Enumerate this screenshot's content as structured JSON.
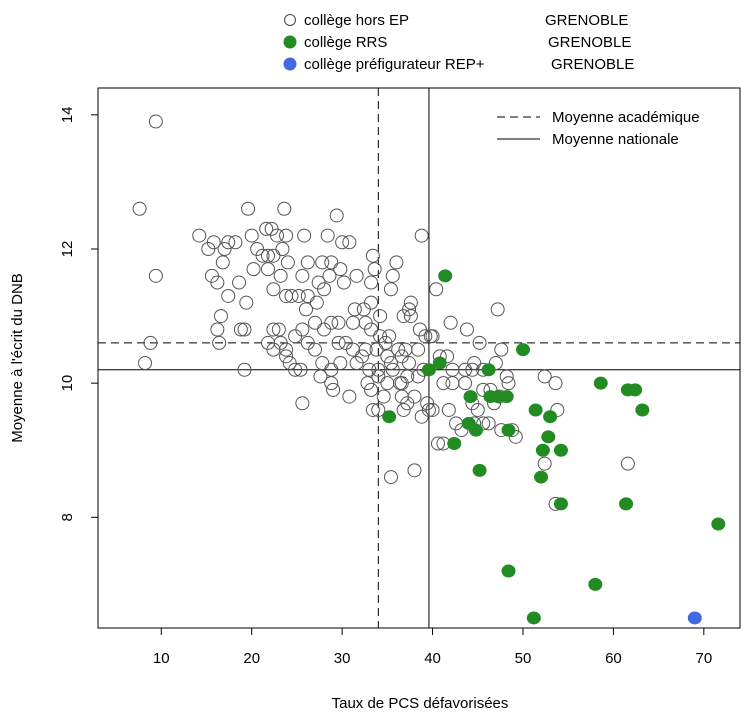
{
  "chart_data": {
    "type": "scatter",
    "xlabel": "Taux de PCS défavorisées",
    "ylabel": "Moyenne à l'écrit du DNB",
    "xlim": [
      3,
      74
    ],
    "ylim": [
      6.35,
      14.4
    ],
    "x_ticks": [
      10,
      20,
      30,
      40,
      50,
      60,
      70
    ],
    "y_ticks": [
      8,
      10,
      12,
      14
    ],
    "grid": false,
    "legend_position": "top",
    "reference_lines": [
      {
        "name": "Moyenne académique",
        "style": "dashed",
        "x": 34,
        "y": 10.6
      },
      {
        "name": "Moyenne nationale",
        "style": "solid",
        "x": 39.6,
        "y": 10.2
      }
    ],
    "series": [
      {
        "name": "collège hors EP",
        "city": "GRENOBLE",
        "marker": "open-circle",
        "color": "#555555",
        "points": [
          [
            9.4,
            13.9
          ],
          [
            7.6,
            12.6
          ],
          [
            9.4,
            11.6
          ],
          [
            8.8,
            10.6
          ],
          [
            8.2,
            10.3
          ],
          [
            19.6,
            12.6
          ],
          [
            23.6,
            12.6
          ],
          [
            29.4,
            12.5
          ],
          [
            38.8,
            12.2
          ],
          [
            14.2,
            12.2
          ],
          [
            15.8,
            12.1
          ],
          [
            17.4,
            12.1
          ],
          [
            18.2,
            12.1
          ],
          [
            15.2,
            12.0
          ],
          [
            17.0,
            12.0
          ],
          [
            20.0,
            12.2
          ],
          [
            21.6,
            12.3
          ],
          [
            22.2,
            12.3
          ],
          [
            22.8,
            12.2
          ],
          [
            23.8,
            12.2
          ],
          [
            25.8,
            12.2
          ],
          [
            28.4,
            12.2
          ],
          [
            30.8,
            12.1
          ],
          [
            20.6,
            12.0
          ],
          [
            21.2,
            11.9
          ],
          [
            21.8,
            11.9
          ],
          [
            22.4,
            11.9
          ],
          [
            23.4,
            12.0
          ],
          [
            24.0,
            11.8
          ],
          [
            26.2,
            11.8
          ],
          [
            27.8,
            11.8
          ],
          [
            28.8,
            11.8
          ],
          [
            29.8,
            11.7
          ],
          [
            33.4,
            11.9
          ],
          [
            21.8,
            11.7
          ],
          [
            23.2,
            11.6
          ],
          [
            25.6,
            11.6
          ],
          [
            27.4,
            11.5
          ],
          [
            28.6,
            11.6
          ],
          [
            30.2,
            11.5
          ],
          [
            31.6,
            11.6
          ],
          [
            33.6,
            11.7
          ],
          [
            15.6,
            11.6
          ],
          [
            16.2,
            11.5
          ],
          [
            16.8,
            11.8
          ],
          [
            18.6,
            11.5
          ],
          [
            20.2,
            11.7
          ],
          [
            22.4,
            11.4
          ],
          [
            26.2,
            11.3
          ],
          [
            28.0,
            11.4
          ],
          [
            33.2,
            11.5
          ],
          [
            35.4,
            11.4
          ],
          [
            33.2,
            11.2
          ],
          [
            35.6,
            11.6
          ],
          [
            36.0,
            11.8
          ],
          [
            37.4,
            11.1
          ],
          [
            37.6,
            11.2
          ],
          [
            36.8,
            11.0
          ],
          [
            37.6,
            11.0
          ],
          [
            34.2,
            11.0
          ],
          [
            31.4,
            11.1
          ],
          [
            32.4,
            11.1
          ],
          [
            23.8,
            11.3
          ],
          [
            24.4,
            11.3
          ],
          [
            25.2,
            11.3
          ],
          [
            26.0,
            11.1
          ],
          [
            27.2,
            11.2
          ],
          [
            17.4,
            11.3
          ],
          [
            19.4,
            11.2
          ],
          [
            16.6,
            11.0
          ],
          [
            16.2,
            10.8
          ],
          [
            18.8,
            10.8
          ],
          [
            19.2,
            10.8
          ],
          [
            22.4,
            10.8
          ],
          [
            23.0,
            10.8
          ],
          [
            24.8,
            10.7
          ],
          [
            25.6,
            10.8
          ],
          [
            27.0,
            10.9
          ],
          [
            28.0,
            10.8
          ],
          [
            28.8,
            10.9
          ],
          [
            29.6,
            10.9
          ],
          [
            31.2,
            10.9
          ],
          [
            32.6,
            10.9
          ],
          [
            33.2,
            10.8
          ],
          [
            34.2,
            10.7
          ],
          [
            34.8,
            10.6
          ],
          [
            35.2,
            10.7
          ],
          [
            36.2,
            10.5
          ],
          [
            37.0,
            10.5
          ],
          [
            38.4,
            10.5
          ],
          [
            38.6,
            10.8
          ],
          [
            39.2,
            10.7
          ],
          [
            39.8,
            10.7
          ],
          [
            16.4,
            10.6
          ],
          [
            21.8,
            10.6
          ],
          [
            22.4,
            10.5
          ],
          [
            23.2,
            10.6
          ],
          [
            23.8,
            10.5
          ],
          [
            26.2,
            10.6
          ],
          [
            27.0,
            10.5
          ],
          [
            29.6,
            10.6
          ],
          [
            30.4,
            10.6
          ],
          [
            31.2,
            10.5
          ],
          [
            32.6,
            10.5
          ],
          [
            33.8,
            10.5
          ],
          [
            35.0,
            10.4
          ],
          [
            35.4,
            10.3
          ],
          [
            36.6,
            10.4
          ],
          [
            37.4,
            10.3
          ],
          [
            23.8,
            10.4
          ],
          [
            24.2,
            10.3
          ],
          [
            24.8,
            10.2
          ],
          [
            27.8,
            10.3
          ],
          [
            28.8,
            10.2
          ],
          [
            29.8,
            10.3
          ],
          [
            31.6,
            10.3
          ],
          [
            32.2,
            10.4
          ],
          [
            33.0,
            10.2
          ],
          [
            34.0,
            10.2
          ],
          [
            35.6,
            10.2
          ],
          [
            36.6,
            10.0
          ],
          [
            37.2,
            10.1
          ],
          [
            38.4,
            10.1
          ],
          [
            39.0,
            10.2
          ],
          [
            19.2,
            10.2
          ],
          [
            25.4,
            10.2
          ],
          [
            27.6,
            10.1
          ],
          [
            28.8,
            10.0
          ],
          [
            32.8,
            10.0
          ],
          [
            34.0,
            10.1
          ],
          [
            35.0,
            10.0
          ],
          [
            29.0,
            9.9
          ],
          [
            33.2,
            9.9
          ],
          [
            34.6,
            9.8
          ],
          [
            36.6,
            9.8
          ],
          [
            36.4,
            10.0
          ],
          [
            37.2,
            9.7
          ],
          [
            38.0,
            9.8
          ],
          [
            39.4,
            9.7
          ],
          [
            25.6,
            9.7
          ],
          [
            30.8,
            9.8
          ],
          [
            33.4,
            9.6
          ],
          [
            34.0,
            9.6
          ],
          [
            36.8,
            9.6
          ],
          [
            38.8,
            9.5
          ],
          [
            39.6,
            9.6
          ],
          [
            40.4,
            11.4
          ],
          [
            42.0,
            10.9
          ],
          [
            43.8,
            10.8
          ],
          [
            47.2,
            11.1
          ],
          [
            45.2,
            10.6
          ],
          [
            47.6,
            10.5
          ],
          [
            40.0,
            10.7
          ],
          [
            40.8,
            10.4
          ],
          [
            41.6,
            10.4
          ],
          [
            42.2,
            10.2
          ],
          [
            43.6,
            10.2
          ],
          [
            44.6,
            10.3
          ],
          [
            45.6,
            10.2
          ],
          [
            47.0,
            10.3
          ],
          [
            48.2,
            10.1
          ],
          [
            48.4,
            10.0
          ],
          [
            41.2,
            10.0
          ],
          [
            42.2,
            10.0
          ],
          [
            43.6,
            10.0
          ],
          [
            44.4,
            10.2
          ],
          [
            45.6,
            9.9
          ],
          [
            46.4,
            9.9
          ],
          [
            47.4,
            9.8
          ],
          [
            41.8,
            9.6
          ],
          [
            44.4,
            9.7
          ],
          [
            45.0,
            9.6
          ],
          [
            46.8,
            9.7
          ],
          [
            42.6,
            9.4
          ],
          [
            44.6,
            9.4
          ],
          [
            45.6,
            9.4
          ],
          [
            46.2,
            9.4
          ],
          [
            47.6,
            9.3
          ],
          [
            48.8,
            9.3
          ],
          [
            49.2,
            9.2
          ],
          [
            43.2,
            9.3
          ],
          [
            40.0,
            9.6
          ],
          [
            40.6,
            9.1
          ],
          [
            41.2,
            9.1
          ],
          [
            52.4,
            10.1
          ],
          [
            53.6,
            10.0
          ],
          [
            53.8,
            9.6
          ],
          [
            52.4,
            8.8
          ],
          [
            61.6,
            8.8
          ],
          [
            53.6,
            8.2
          ],
          [
            35.4,
            8.6
          ],
          [
            38.0,
            8.7
          ],
          [
            30.0,
            12.1
          ]
        ]
      },
      {
        "name": "collège RRS",
        "city": "GRENOBLE",
        "marker": "filled-circle",
        "color": "#228b22",
        "points": [
          [
            41.4,
            11.6
          ],
          [
            40.8,
            10.3
          ],
          [
            39.6,
            10.2
          ],
          [
            46.2,
            10.2
          ],
          [
            50.0,
            10.5
          ],
          [
            44.2,
            9.8
          ],
          [
            46.4,
            9.8
          ],
          [
            47.2,
            9.8
          ],
          [
            48.2,
            9.8
          ],
          [
            35.2,
            9.5
          ],
          [
            44.0,
            9.4
          ],
          [
            44.8,
            9.3
          ],
          [
            42.4,
            9.1
          ],
          [
            48.4,
            9.3
          ],
          [
            51.4,
            9.6
          ],
          [
            52.8,
            9.2
          ],
          [
            53.0,
            9.5
          ],
          [
            58.6,
            10.0
          ],
          [
            61.6,
            9.9
          ],
          [
            62.4,
            9.9
          ],
          [
            63.2,
            9.6
          ],
          [
            52.2,
            9.0
          ],
          [
            54.2,
            9.0
          ],
          [
            52.0,
            8.6
          ],
          [
            45.2,
            8.7
          ],
          [
            54.2,
            8.2
          ],
          [
            61.4,
            8.2
          ],
          [
            71.6,
            7.9
          ],
          [
            48.4,
            7.2
          ],
          [
            58.0,
            7.0
          ],
          [
            51.2,
            6.5
          ]
        ]
      },
      {
        "name": "collège préfigurateur REP+",
        "city": "GRENOBLE",
        "marker": "filled-circle",
        "color": "#4169e1",
        "points": [
          [
            69.0,
            6.5
          ]
        ]
      }
    ]
  }
}
